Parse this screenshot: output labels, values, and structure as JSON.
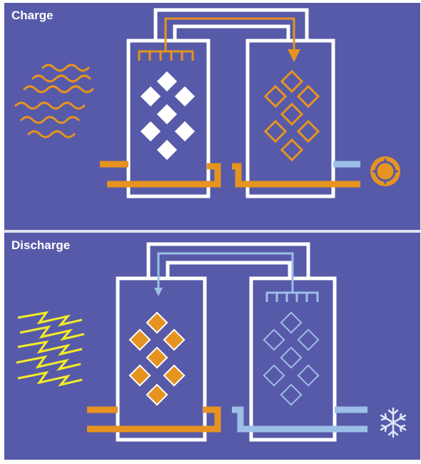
{
  "charge": {
    "title": "Charge"
  },
  "discharge": {
    "title": "Discharge"
  },
  "colors": {
    "background": "#575aa8",
    "outline": "#ffffff",
    "hot": "#e69320",
    "cold": "#9cbfe8",
    "electric": "#f3eb28"
  },
  "icons": [
    "heat-waves-icon",
    "sun-icon",
    "lightning-icon",
    "snowflake-icon"
  ]
}
